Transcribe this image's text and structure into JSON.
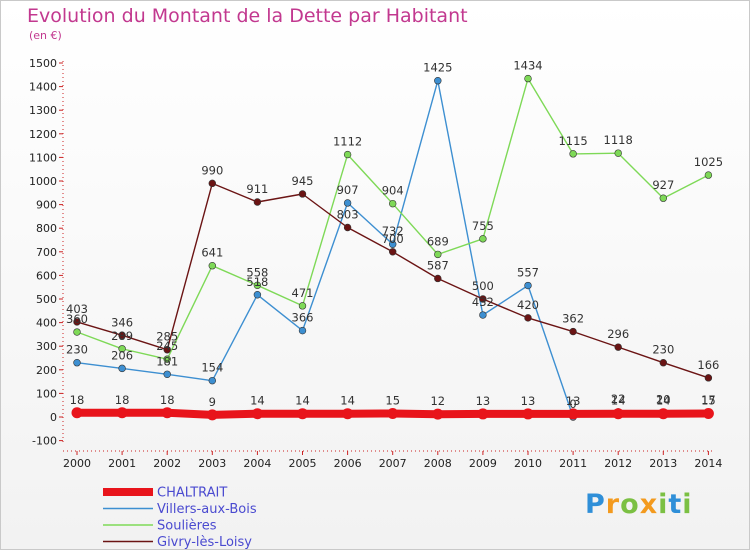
{
  "title": "Evolution du Montant de la Dette par Habitant",
  "unit": "(en €)",
  "logo": {
    "text": "Proxiti",
    "colors": [
      "#2f8fd8",
      "#f39a1e",
      "#7bc043"
    ]
  },
  "chart_data": {
    "type": "line",
    "title": "Evolution du Montant de la Dette par Habitant",
    "ylabel": "(en €)",
    "xlabel": "",
    "ylim": [
      -100,
      1500
    ],
    "ytick_step": 100,
    "grid": false,
    "legend_position": "bottom-left",
    "categories": [
      "2000",
      "2001",
      "2002",
      "2003",
      "2004",
      "2005",
      "2006",
      "2007",
      "2008",
      "2009",
      "2010",
      "2011",
      "2012",
      "2013",
      "2014"
    ],
    "series": [
      {
        "name": "CHALTRAIT",
        "color": "#e8141b",
        "heavy": true,
        "values": [
          18,
          18,
          18,
          9,
          14,
          14,
          14,
          15,
          12,
          13,
          13,
          13,
          14,
          14,
          15
        ],
        "labels": [
          "18",
          "18",
          "18",
          "9",
          "14",
          "14",
          "14",
          "15",
          "12",
          "13",
          "13",
          "13",
          "14",
          "14",
          "15"
        ]
      },
      {
        "name": "Villers-aux-Bois",
        "color": "#3d8fd1",
        "values": [
          230,
          206,
          181,
          154,
          518,
          366,
          907,
          732,
          1425,
          432,
          557,
          0,
          22,
          20,
          17
        ],
        "labels": [
          "230",
          "206",
          "181",
          "154",
          "518",
          "366",
          "907",
          "732",
          "1425",
          "432",
          "557",
          "0",
          "22",
          "20",
          "17"
        ]
      },
      {
        "name": "Soulières",
        "color": "#7ed957",
        "values": [
          360,
          289,
          245,
          641,
          558,
          471,
          1112,
          904,
          689,
          755,
          1434,
          1115,
          1118,
          927,
          1025
        ],
        "labels": [
          "360",
          "289",
          "245",
          "641",
          "558",
          "471",
          "1112",
          "904",
          "689",
          "755",
          "1434",
          "1115",
          "1118",
          "927",
          "1025"
        ]
      },
      {
        "name": "Givry-lès-Loisy",
        "color": "#6b1414",
        "values": [
          403,
          346,
          285,
          990,
          911,
          945,
          803,
          700,
          587,
          500,
          420,
          362,
          296,
          230,
          166
        ],
        "labels": [
          "403",
          "346",
          "285",
          "990",
          "911",
          "945",
          "803",
          "700",
          "587",
          "500",
          "420",
          "362",
          "296",
          "230",
          "166"
        ]
      }
    ]
  }
}
